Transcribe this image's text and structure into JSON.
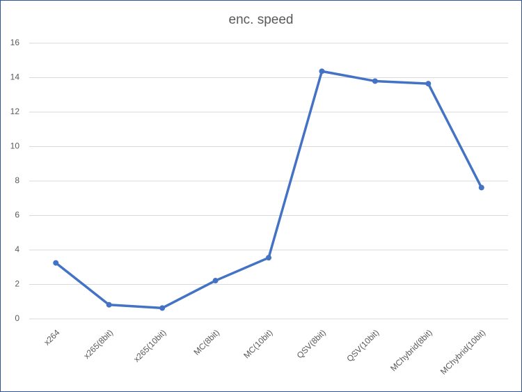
{
  "chart_data": {
    "type": "line",
    "title": "enc. speed",
    "categories": [
      "x264",
      "x265(8bit)",
      "x265(10bit)",
      "MC(8bit)",
      "MC(10bit)",
      "QSV(8bit)",
      "QSV(10bit)",
      "MChybrid(8bit)",
      "MChybrid(10bit)"
    ],
    "values": [
      3.25,
      0.82,
      0.63,
      2.22,
      3.55,
      14.37,
      13.8,
      13.65,
      7.62
    ],
    "color": "#4472c4",
    "ylim": [
      0,
      16
    ],
    "yticks": [
      0,
      2,
      4,
      6,
      8,
      10,
      12,
      14,
      16
    ],
    "grid": true
  }
}
